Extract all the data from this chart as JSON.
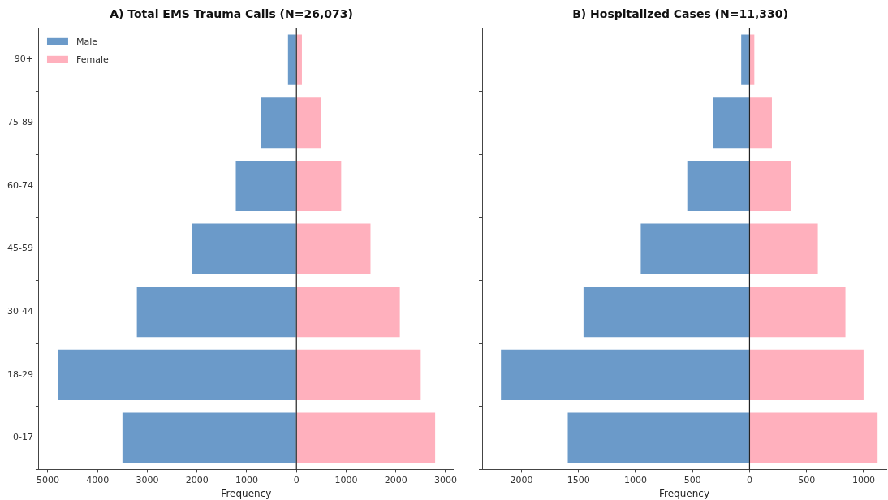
{
  "chart_data": [
    {
      "type": "bar",
      "orientation": "horizontal",
      "title": "A) Total EMS Trauma Calls (N=26,073)",
      "xlabel": "Frequency",
      "categories": [
        "90+",
        "75-89",
        "60-74",
        "45-59",
        "30-44",
        "18-29",
        "0-17"
      ],
      "series": [
        {
          "name": "Male",
          "color": "#6b9ac9",
          "values": [
            -170,
            -710,
            -1220,
            -2100,
            -3210,
            -4800,
            -3500
          ]
        },
        {
          "name": "Female",
          "color": "#ffb0bd",
          "values": [
            110,
            500,
            900,
            1490,
            2080,
            2500,
            2790
          ]
        }
      ],
      "xlim": [
        -5180,
        3160
      ],
      "xticks": [
        {
          "value": -5000,
          "label": "5000"
        },
        {
          "value": -4000,
          "label": "4000"
        },
        {
          "value": -3000,
          "label": "3000"
        },
        {
          "value": -2000,
          "label": "2000"
        },
        {
          "value": -1000,
          "label": "1000"
        },
        0,
        1000,
        2000,
        3000
      ],
      "ref_lines": [
        {
          "axis": "x",
          "value": 0,
          "color": "#222222"
        }
      ],
      "stacked": true,
      "legend": "top left",
      "grid": false
    },
    {
      "type": "bar",
      "orientation": "horizontal",
      "title": "B) Hospitalized Cases (N=11,330)",
      "xlabel": "Frequency",
      "categories": [
        null,
        null,
        null,
        null,
        null,
        null,
        null
      ],
      "series": [
        {
          "color": "#6b9ac9",
          "values": [
            -73,
            -318,
            -546,
            -954,
            -1456,
            -2180,
            -1594
          ]
        },
        {
          "color": "#ffb0bd",
          "values": [
            42,
            196,
            360,
            599,
            841,
            1000,
            1123
          ]
        }
      ],
      "xlim": [
        -2345,
        1200
      ],
      "xticks": [
        {
          "value": -2000,
          "label": "2000"
        },
        {
          "value": -1500,
          "label": "1500"
        },
        {
          "value": -1000,
          "label": "1000"
        },
        {
          "value": -500,
          "label": "500"
        },
        0,
        500,
        1000
      ],
      "ref_lines": [
        {
          "axis": "x",
          "value": 0,
          "color": "#222222"
        }
      ],
      "stacked": true,
      "legend": false,
      "grid": false
    }
  ]
}
